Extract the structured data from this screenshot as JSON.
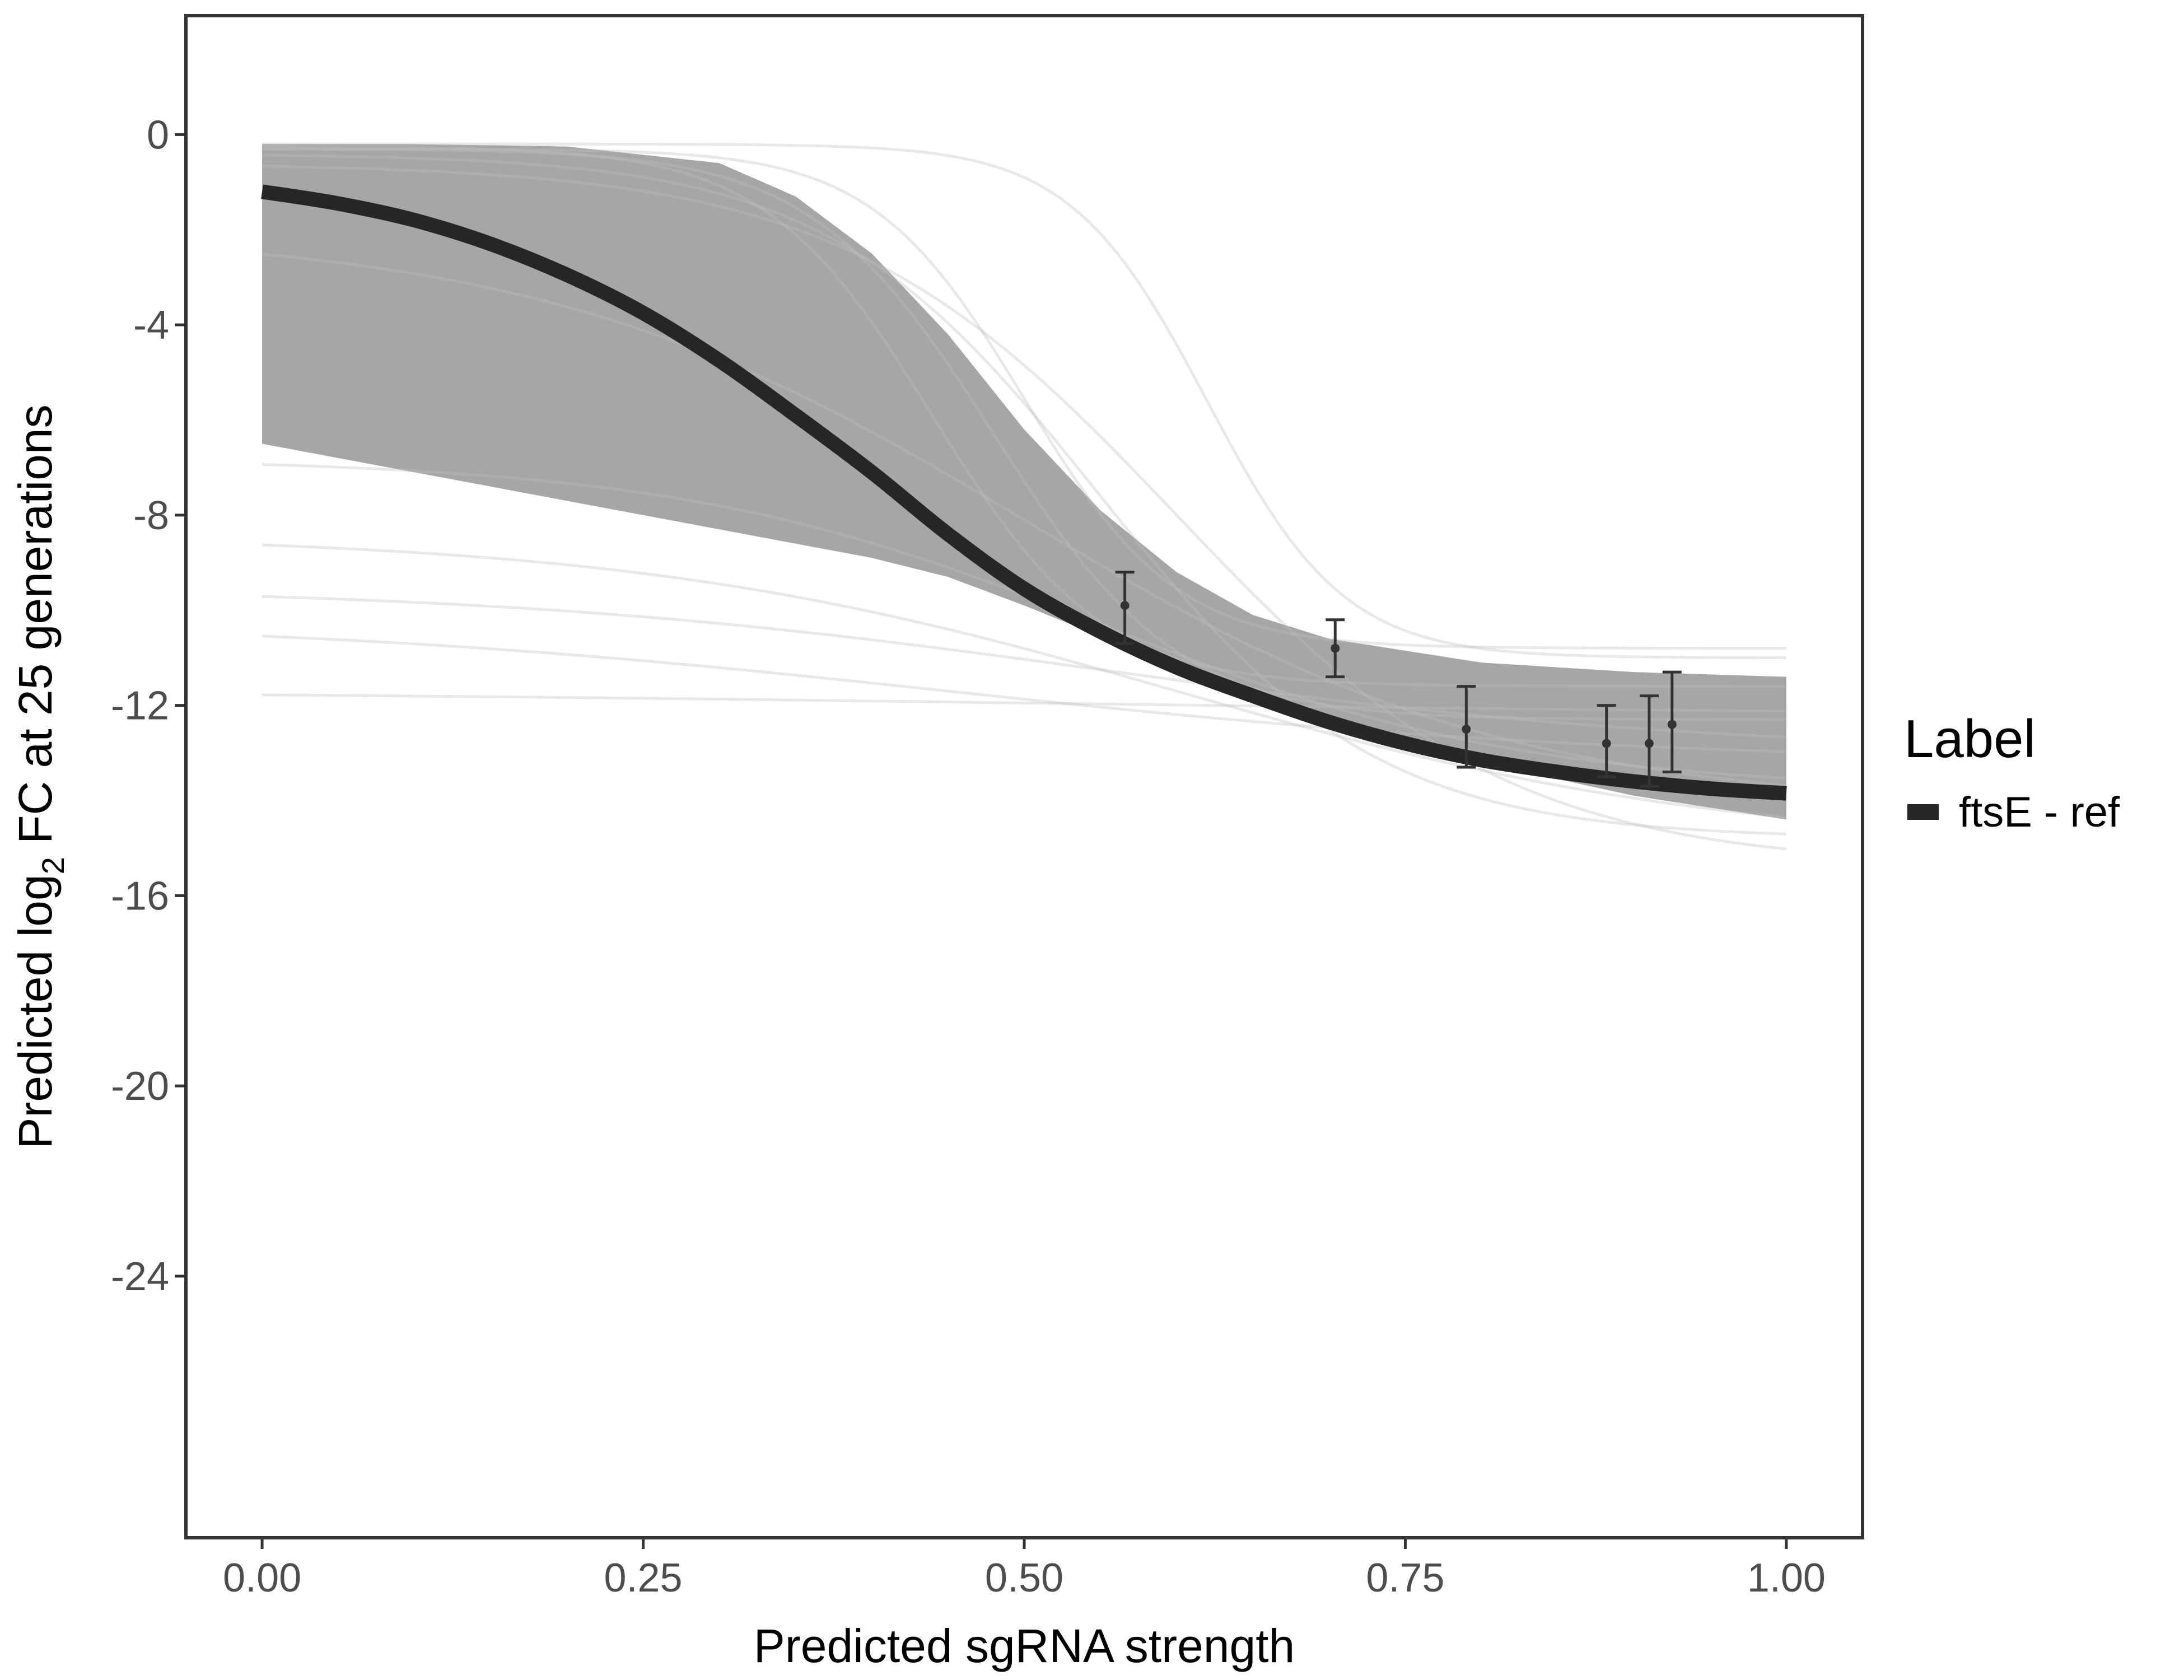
{
  "chart_data": {
    "type": "line",
    "xlabel": "Predicted sgRNA strength",
    "ylabel_parts": [
      "Predicted  log",
      "2",
      " FC at 25 generations"
    ],
    "xlim": [
      -0.05,
      1.05
    ],
    "ylim": [
      -29.5,
      2.5
    ],
    "x_ticks": [
      0.0,
      0.25,
      0.5,
      0.75,
      1.0
    ],
    "x_tick_labels": [
      "0.00",
      "0.25",
      "0.50",
      "0.75",
      "1.00"
    ],
    "y_ticks": [
      0,
      -4,
      -8,
      -12,
      -16,
      -20,
      -24
    ],
    "y_tick_labels": [
      "0",
      "-4",
      "-8",
      "-12",
      "-16",
      "-20",
      "-24"
    ],
    "grid": false,
    "legend": {
      "title": "Label",
      "position": "right",
      "entries": [
        {
          "label": "ftsE - ref",
          "color": "#262626"
        }
      ]
    },
    "series": [
      {
        "name": "ftsE - ref",
        "color": "#262626",
        "x": [
          0.0,
          0.05,
          0.1,
          0.15,
          0.2,
          0.25,
          0.3,
          0.35,
          0.4,
          0.45,
          0.5,
          0.55,
          0.6,
          0.65,
          0.7,
          0.75,
          0.8,
          0.85,
          0.9,
          0.95,
          1.0
        ],
        "y": [
          -1.2,
          -1.45,
          -1.8,
          -2.3,
          -2.95,
          -3.75,
          -4.75,
          -5.9,
          -7.1,
          -8.4,
          -9.55,
          -10.45,
          -11.2,
          -11.8,
          -12.35,
          -12.8,
          -13.15,
          -13.4,
          -13.6,
          -13.75,
          -13.85
        ]
      }
    ],
    "posterior_band": {
      "color": "#a6a6a6",
      "upper": {
        "x": [
          0.0,
          0.1,
          0.2,
          0.3,
          0.35,
          0.4,
          0.45,
          0.5,
          0.55,
          0.6,
          0.65,
          0.7,
          0.8,
          0.9,
          1.0
        ],
        "y": [
          -0.2,
          -0.2,
          -0.25,
          -0.6,
          -1.3,
          -2.5,
          -4.2,
          -6.2,
          -7.9,
          -9.2,
          -10.1,
          -10.6,
          -11.1,
          -11.3,
          -11.4
        ]
      },
      "lower": {
        "x": [
          0.0,
          0.1,
          0.2,
          0.3,
          0.4,
          0.45,
          0.5,
          0.6,
          0.7,
          0.8,
          0.9,
          1.0
        ],
        "y": [
          -6.5,
          -7.1,
          -7.7,
          -8.3,
          -8.9,
          -9.3,
          -9.9,
          -11.2,
          -12.4,
          -13.2,
          -13.9,
          -14.4
        ]
      }
    },
    "observations": [
      {
        "x": 0.566,
        "y": -9.9,
        "ymin": -10.7,
        "ymax": -9.2
      },
      {
        "x": 0.704,
        "y": -10.8,
        "ymin": -11.4,
        "ymax": -10.2
      },
      {
        "x": 0.79,
        "y": -12.5,
        "ymin": -13.3,
        "ymax": -11.6
      },
      {
        "x": 0.882,
        "y": -12.8,
        "ymin": -13.5,
        "ymax": -12.0
      },
      {
        "x": 0.91,
        "y": -12.8,
        "ymin": -13.7,
        "ymax": -11.8
      },
      {
        "x": 0.925,
        "y": -12.4,
        "ymin": -13.4,
        "ymax": -11.3
      }
    ]
  }
}
